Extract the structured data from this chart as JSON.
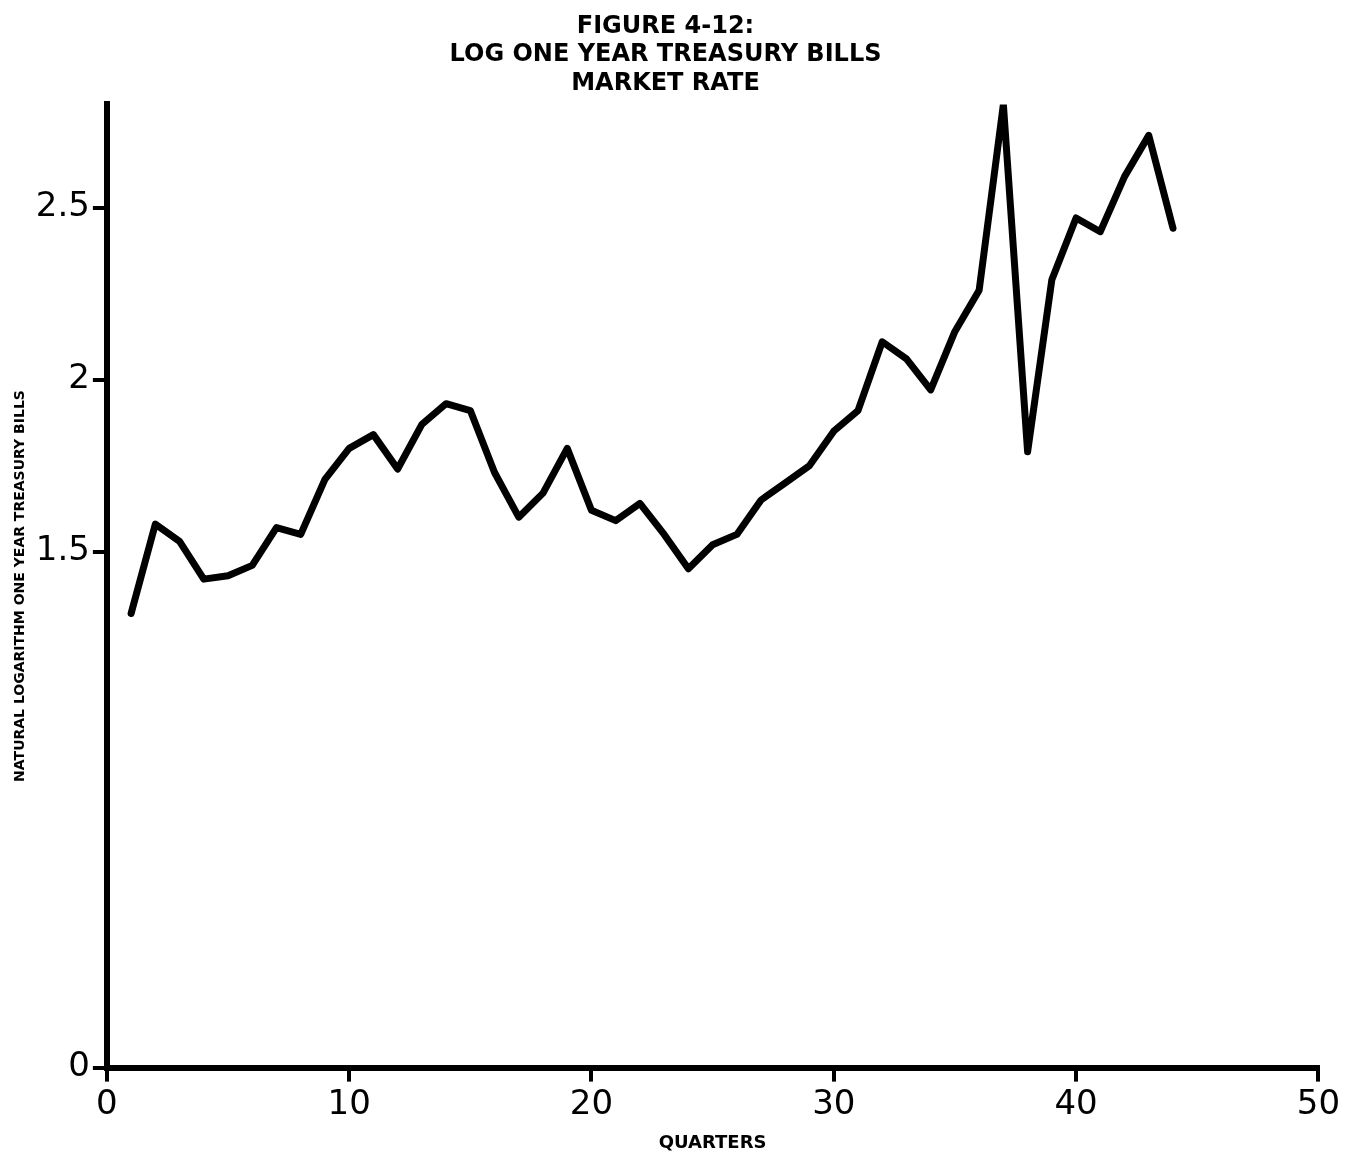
{
  "chart_data": {
    "type": "line",
    "title": "FIGURE 4-12:\nLOG ONE YEAR TREASURY BILLS\nMARKET RATE",
    "xlabel": "QUARTERS",
    "ylabel": "NATURAL LOGARITHM ONE YEAR TREASURY BILLS",
    "x": [
      1,
      2,
      3,
      4,
      5,
      6,
      7,
      8,
      9,
      10,
      11,
      12,
      13,
      14,
      15,
      16,
      17,
      18,
      19,
      20,
      21,
      22,
      23,
      24,
      25,
      26,
      27,
      28,
      29,
      30,
      31,
      32,
      33,
      34,
      35,
      36,
      37,
      38,
      39,
      40,
      41,
      42,
      43,
      44
    ],
    "series": [
      {
        "color": "#000000",
        "values": [
          1.32,
          1.58,
          1.53,
          1.42,
          1.43,
          1.46,
          1.57,
          1.55,
          1.71,
          1.8,
          1.84,
          1.74,
          1.87,
          1.93,
          1.91,
          1.73,
          1.6,
          1.67,
          1.8,
          1.62,
          1.59,
          1.64,
          1.55,
          1.45,
          1.52,
          1.55,
          1.65,
          1.7,
          1.75,
          1.85,
          1.91,
          2.11,
          2.06,
          1.97,
          2.14,
          2.26,
          2.8,
          1.79,
          2.29,
          2.47,
          2.43,
          2.59,
          2.71,
          2.44
        ]
      }
    ],
    "xlim": [
      0,
      50
    ],
    "xticks": [
      0,
      10,
      20,
      30,
      40,
      50
    ],
    "ylim": [
      0,
      2.8
    ],
    "yticks": [
      0,
      1.5,
      2,
      2.5
    ],
    "grid": false,
    "legend": false,
    "marker": "none",
    "line_style": "solid"
  }
}
